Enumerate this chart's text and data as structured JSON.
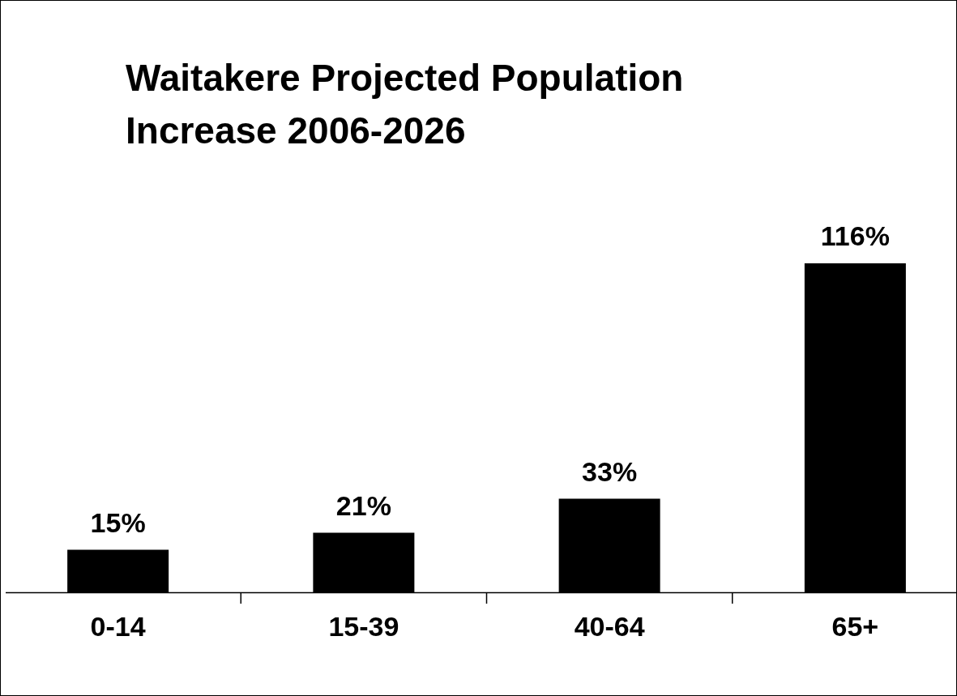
{
  "chart_data": {
    "type": "bar",
    "title": "Waitakere Projected Population Increase 2006-2026",
    "categories": [
      "0-14",
      "15-39",
      "40-64",
      "65+"
    ],
    "values": [
      15,
      21,
      33,
      116
    ],
    "value_labels": [
      "15%",
      "21%",
      "33%",
      "116%"
    ],
    "color": "#000000"
  }
}
